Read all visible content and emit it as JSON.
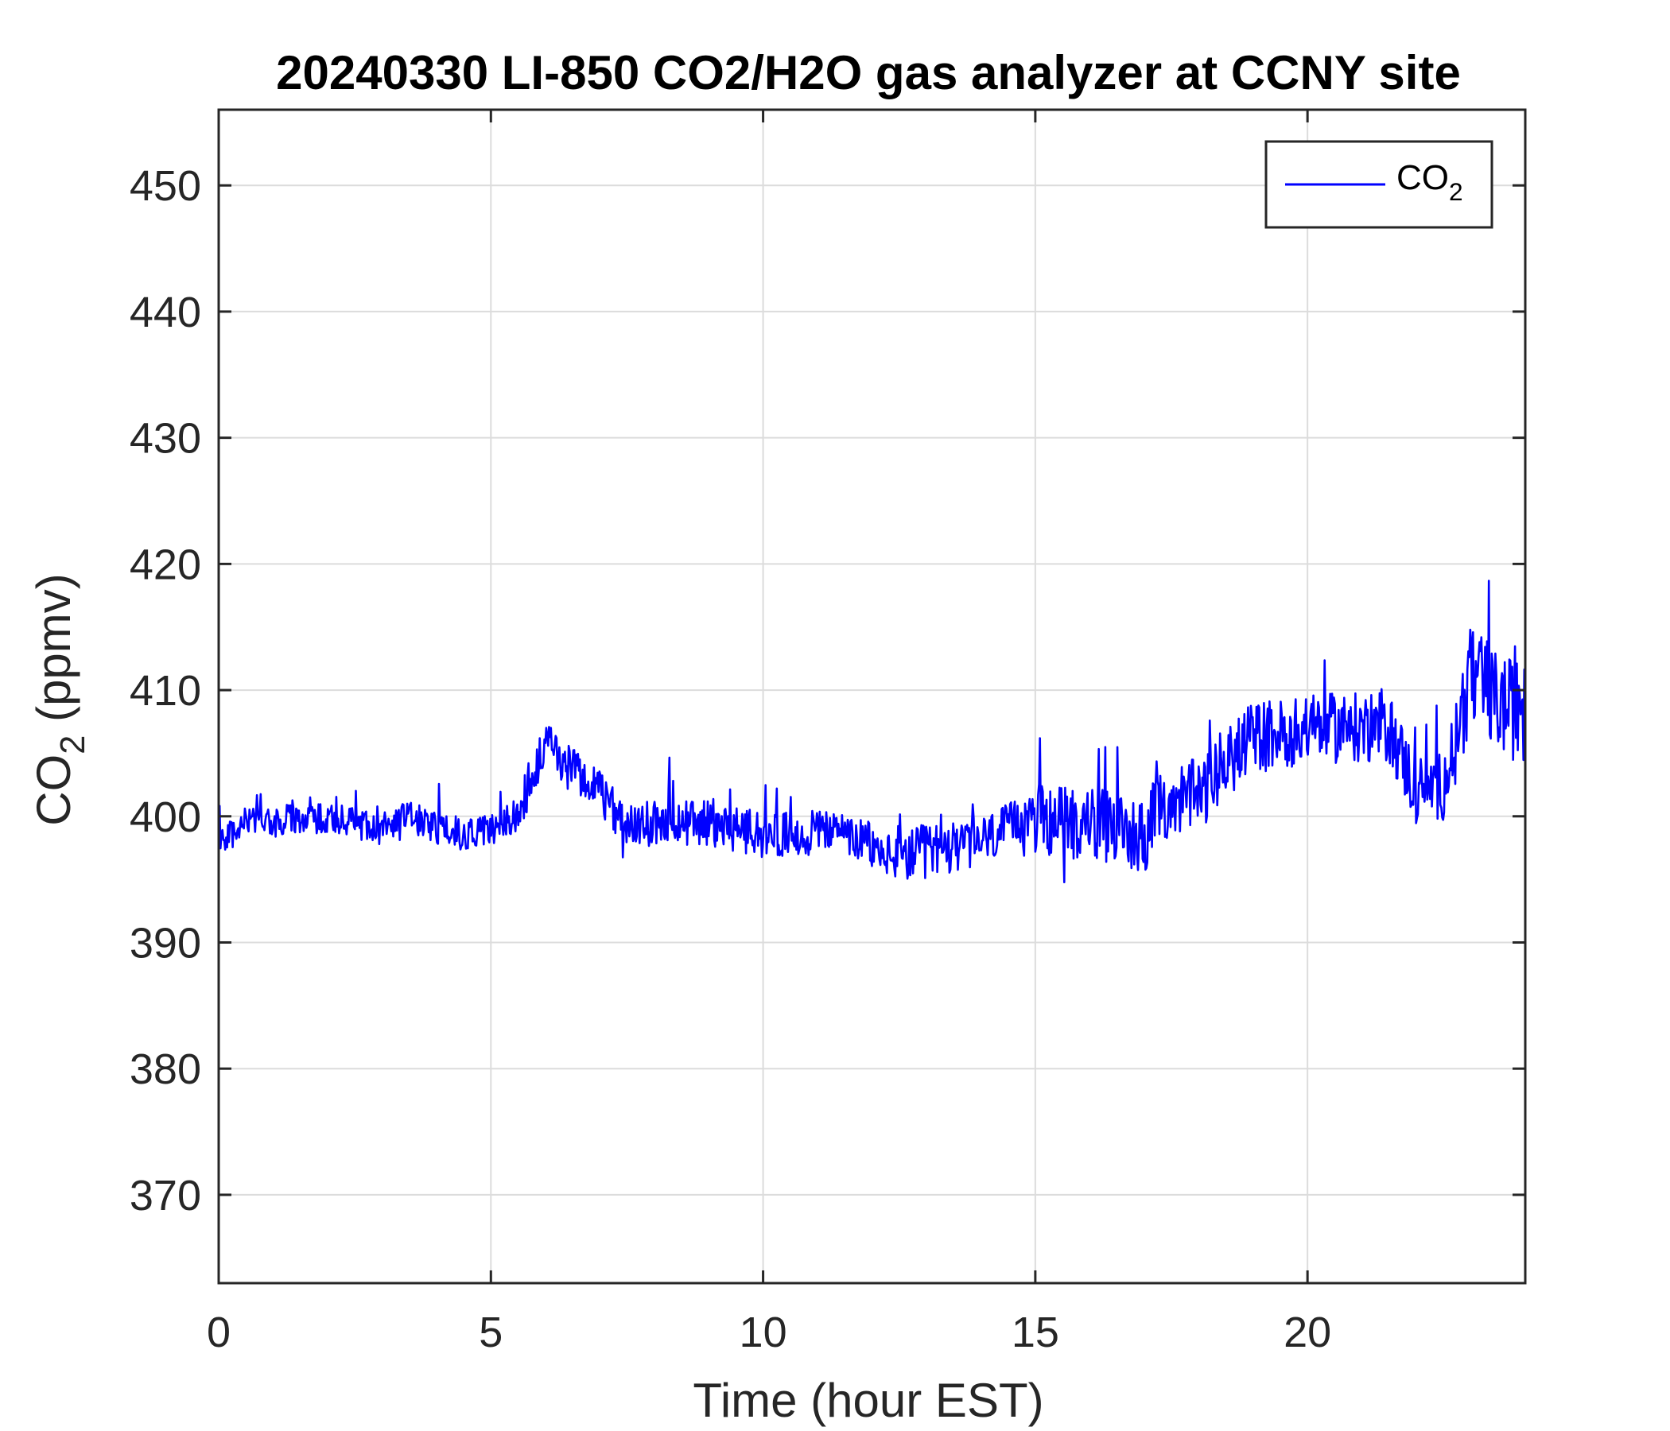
{
  "chart_data": {
    "type": "line",
    "title": "20240330 LI-850 CO2/H2O gas analyzer at CCNY site",
    "xlabel": "Time (hour EST)",
    "ylabel": {
      "main": "CO",
      "subscript": "2",
      "suffix": " (ppmv)"
    },
    "xlim": [
      0,
      24
    ],
    "ylim": [
      363,
      456
    ],
    "xticks": [
      0,
      5,
      10,
      15,
      20
    ],
    "yticks": [
      370,
      380,
      390,
      400,
      410,
      420,
      430,
      440,
      450
    ],
    "grid": true,
    "legend_position": "top-right",
    "colors": {
      "series": "#0000ff",
      "grid": "#dcdcdc",
      "axis": "#262626"
    },
    "series": [
      {
        "name": {
          "main": "CO",
          "subscript": "2"
        },
        "color": "#0000ff",
        "x": [
          0,
          0.5,
          1,
          1.5,
          2,
          2.5,
          3,
          3.5,
          4,
          4.5,
          5,
          5.5,
          6,
          6.5,
          7,
          7.5,
          8,
          8.5,
          9,
          9.5,
          10,
          10.5,
          11,
          11.5,
          12,
          12.5,
          13,
          13.5,
          14,
          14.5,
          15,
          15.5,
          16,
          16.5,
          17,
          17.5,
          18,
          18.5,
          19,
          19.5,
          20,
          20.5,
          21,
          21.5,
          22,
          22.5,
          23,
          23.5,
          24
        ],
        "y": [
          398,
          399.5,
          399.5,
          400,
          399.8,
          399.5,
          399,
          400,
          399,
          398.5,
          399,
          400.5,
          405.5,
          404,
          402,
          399,
          399.5,
          399.5,
          399.5,
          399,
          398.5,
          398.5,
          399,
          398.5,
          397.5,
          396.5,
          397.5,
          397.5,
          398,
          399,
          400,
          399.5,
          399.5,
          399,
          398.5,
          401.5,
          401.5,
          404,
          406.5,
          406.5,
          407,
          407,
          407,
          407,
          402,
          402.5,
          411,
          409,
          408
        ]
      }
    ]
  }
}
